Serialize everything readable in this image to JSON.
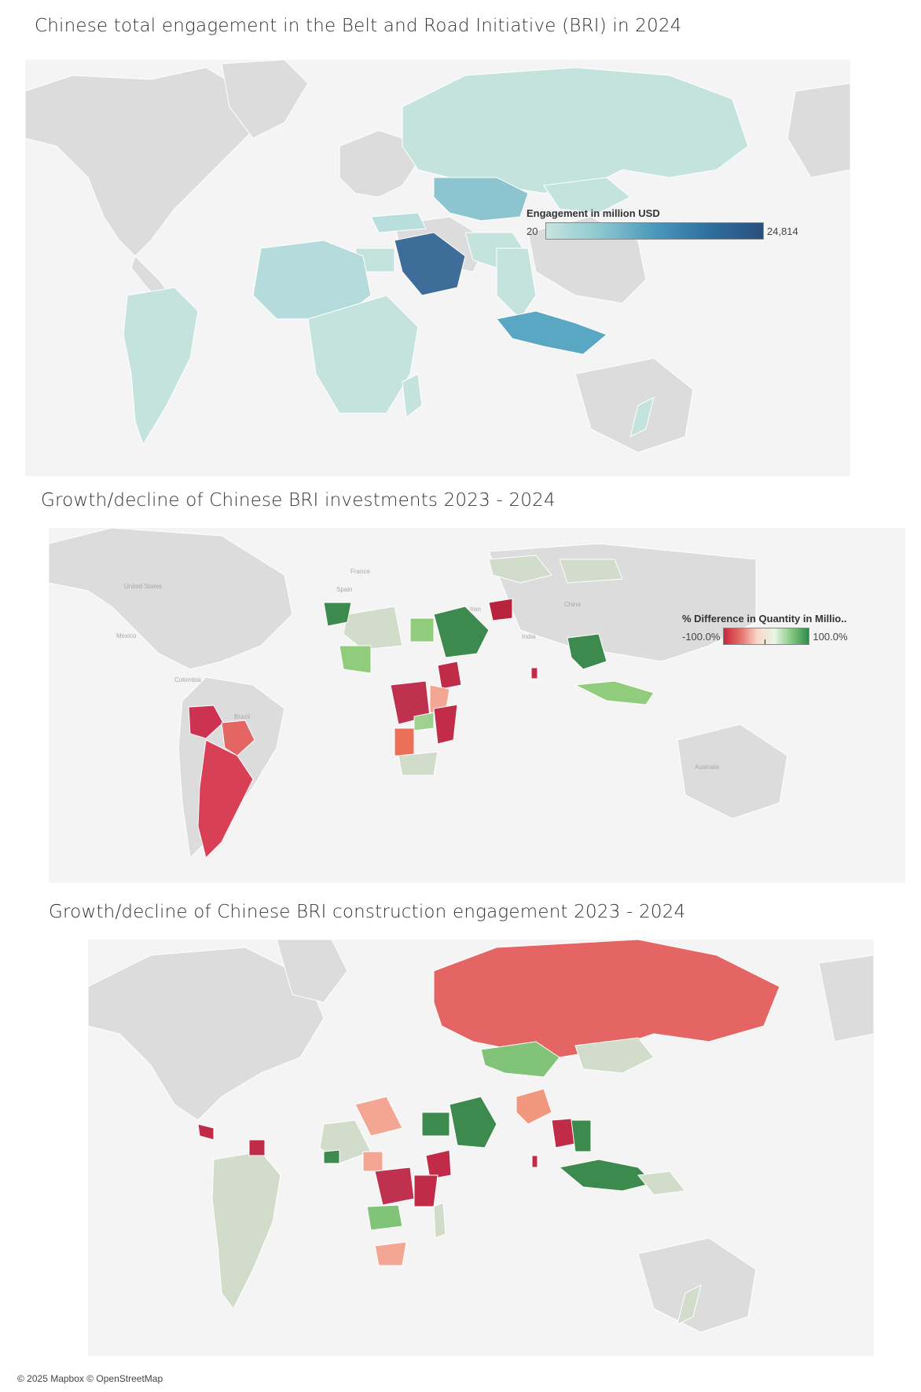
{
  "maps": [
    {
      "title": "Chinese total engagement in the Belt and Road Initiative (BRI) in 2024",
      "legend": {
        "title": "Engagement in million USD",
        "min_label": "20",
        "max_label": "24,814",
        "min": 20,
        "max": 24814
      }
    },
    {
      "title": "Growth/decline of Chinese BRI investments 2023 - 2024",
      "legend": {
        "title": "% Difference in Quantity in Millio..",
        "min_label": "-100.0%",
        "max_label": "100.0%",
        "min": -1,
        "max": 1
      },
      "place_labels": [
        "United States",
        "Mexico",
        "Colombia",
        "Brazil",
        "France",
        "Spain",
        "Iran",
        "India",
        "China",
        "Australia"
      ]
    },
    {
      "title": "Growth/decline of Chinese BRI construction engagement 2023 - 2024"
    }
  ],
  "colors": {
    "land": "#dcdcdc",
    "water": "#f4f4f4",
    "seq_low": "#c6e4df",
    "seq_high": "#2a4f7c",
    "div_negative": "#c8253f",
    "div_positive": "#2f8c4a"
  },
  "attribution": "© 2025 Mapbox © OpenStreetMap"
}
